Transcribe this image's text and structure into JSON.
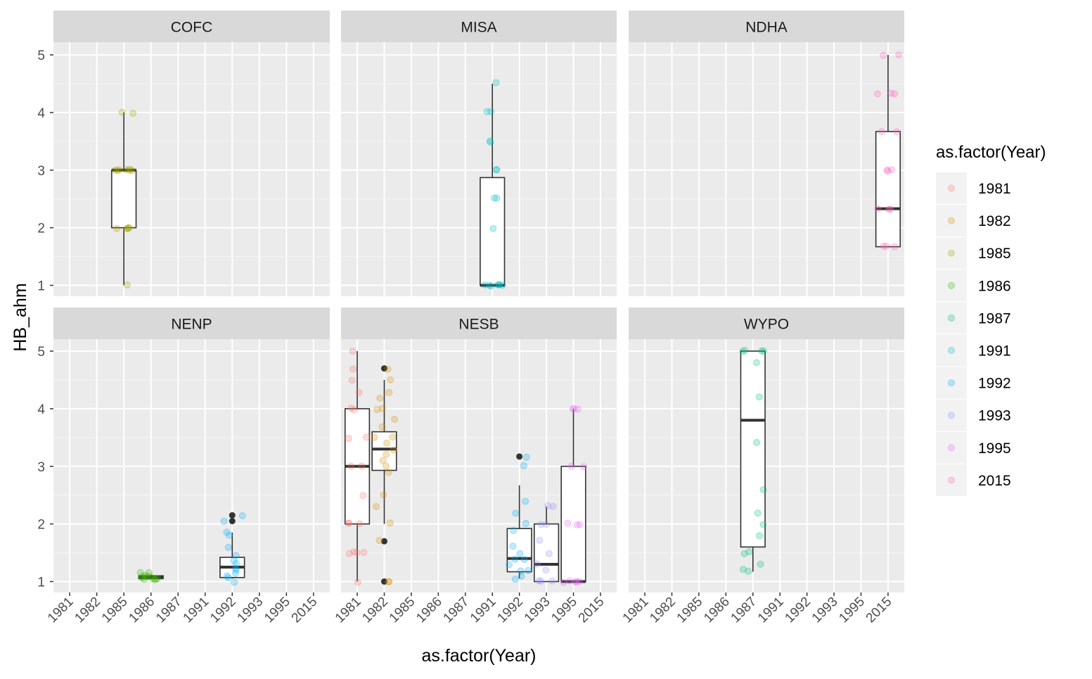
{
  "chart_data": {
    "type": "box",
    "xlabel": "as.factor(Year)",
    "ylabel": "HB_ahm",
    "categories": [
      "1981",
      "1982",
      "1985",
      "1986",
      "1987",
      "1991",
      "1992",
      "1993",
      "1995",
      "2015"
    ],
    "y_ticks": [
      "1",
      "2",
      "3",
      "4",
      "5"
    ],
    "ylim": [
      0.75,
      5.4
    ],
    "grid": true,
    "legend": {
      "title": "as.factor(Year)",
      "placement": "right",
      "entries": [
        {
          "label": "1981",
          "color": "#F8766D"
        },
        {
          "label": "1982",
          "color": "#D89000"
        },
        {
          "label": "1985",
          "color": "#A3A500"
        },
        {
          "label": "1986",
          "color": "#39B600"
        },
        {
          "label": "1987",
          "color": "#00BF7D"
        },
        {
          "label": "1991",
          "color": "#00BFC4"
        },
        {
          "label": "1992",
          "color": "#00B0F6"
        },
        {
          "label": "1993",
          "color": "#9590FF"
        },
        {
          "label": "1995",
          "color": "#E76BF3"
        },
        {
          "label": "2015",
          "color": "#FF62BC"
        }
      ]
    },
    "panels": [
      {
        "name": "COFC",
        "boxes": [
          {
            "year": "1985",
            "min": 1.0,
            "q1": 2.0,
            "median": 3.0,
            "q3": 3.0,
            "max": 4.0,
            "outliers": [],
            "points": [
              1.0,
              2.0,
              2.0,
              2.0,
              2.0,
              2.0,
              3.0,
              3.0,
              3.0,
              3.0,
              3.0,
              3.0,
              3.0,
              4.0,
              4.0
            ]
          }
        ]
      },
      {
        "name": "MISA",
        "boxes": [
          {
            "year": "1991",
            "min": 1.0,
            "q1": 1.0,
            "median": 1.0,
            "q3": 2.87,
            "max": 4.5,
            "outliers": [],
            "points": [
              1.0,
              1.0,
              1.0,
              1.0,
              1.0,
              1.0,
              1.0,
              2.0,
              2.5,
              2.5,
              3.0,
              3.0,
              3.5,
              3.5,
              4.0,
              4.0,
              4.5
            ]
          }
        ]
      },
      {
        "name": "NDHA",
        "boxes": [
          {
            "year": "2015",
            "min": 1.67,
            "q1": 1.67,
            "median": 2.33,
            "q3": 3.67,
            "max": 5.0,
            "outliers": [],
            "points": [
              1.67,
              1.67,
              1.67,
              2.33,
              2.33,
              2.33,
              3.0,
              3.0,
              3.0,
              3.67,
              3.67,
              4.33,
              4.33,
              4.33,
              5.0,
              5.0
            ]
          }
        ]
      },
      {
        "name": "NENP",
        "boxes": [
          {
            "year": "1986",
            "min": 1.05,
            "q1": 1.05,
            "median": 1.08,
            "q3": 1.1,
            "max": 1.12,
            "outliers": [],
            "points": [
              1.04,
              1.05,
              1.06,
              1.08,
              1.08,
              1.1,
              1.1,
              1.12,
              1.15,
              1.15,
              1.05,
              1.07
            ]
          },
          {
            "year": "1992",
            "min": 1.05,
            "q1": 1.07,
            "median": 1.25,
            "q3": 1.42,
            "max": 1.85,
            "outliers": [
              2.05,
              2.15
            ],
            "points": [
              1.0,
              1.05,
              1.1,
              1.15,
              1.2,
              1.25,
              1.3,
              1.35,
              1.45,
              1.6,
              1.8,
              1.85,
              2.05,
              2.15
            ]
          }
        ]
      },
      {
        "name": "NESB",
        "boxes": [
          {
            "year": "1981",
            "min": 1.0,
            "q1": 2.0,
            "median": 3.0,
            "q3": 4.0,
            "max": 5.0,
            "outliers": [],
            "points": [
              1.0,
              1.5,
              1.5,
              1.5,
              1.5,
              2.0,
              2.0,
              2.0,
              2.5,
              3.0,
              3.0,
              3.5,
              3.5,
              4.0,
              4.0,
              4.3,
              4.5,
              4.7,
              5.0
            ]
          },
          {
            "year": "1982",
            "min": 2.0,
            "q1": 2.93,
            "median": 3.3,
            "q3": 3.6,
            "max": 4.5,
            "outliers": [
              1.0,
              1.7,
              4.7
            ],
            "points": [
              1.0,
              1.0,
              1.7,
              2.0,
              2.3,
              2.5,
              2.9,
              3.0,
              3.1,
              3.2,
              3.3,
              3.4,
              3.5,
              3.5,
              3.7,
              3.8,
              4.0,
              4.0,
              4.2,
              4.3,
              4.5,
              4.7
            ]
          },
          {
            "year": "1992",
            "min": 1.05,
            "q1": 1.17,
            "median": 1.4,
            "q3": 1.92,
            "max": 2.67,
            "outliers": [
              3.17
            ],
            "points": [
              1.05,
              1.1,
              1.17,
              1.2,
              1.3,
              1.4,
              1.4,
              1.5,
              1.6,
              1.9,
              2.0,
              2.2,
              2.4,
              3.0,
              3.17
            ]
          },
          {
            "year": "1993",
            "min": 1.0,
            "q1": 1.0,
            "median": 1.3,
            "q3": 2.0,
            "max": 2.3,
            "outliers": [],
            "points": [
              1.0,
              1.0,
              1.0,
              1.2,
              1.3,
              1.5,
              1.7,
              2.0,
              2.0,
              2.3,
              2.3
            ]
          },
          {
            "year": "1995",
            "min": 1.0,
            "q1": 1.0,
            "median": 1.0,
            "q3": 3.0,
            "max": 4.0,
            "outliers": [],
            "points": [
              1.0,
              1.0,
              1.0,
              1.0,
              1.0,
              2.0,
              2.0,
              2.0,
              3.0,
              3.0,
              4.0,
              4.0,
              4.0
            ]
          }
        ]
      },
      {
        "name": "WYPO",
        "boxes": [
          {
            "year": "1987",
            "min": 1.17,
            "q1": 1.6,
            "median": 3.8,
            "q3": 5.0,
            "max": 5.0,
            "outliers": [],
            "points": [
              1.17,
              1.2,
              1.3,
              1.5,
              1.5,
              1.8,
              2.0,
              2.2,
              2.6,
              3.4,
              4.2,
              4.8,
              5.0,
              5.0,
              5.0,
              5.0
            ]
          }
        ]
      }
    ]
  }
}
